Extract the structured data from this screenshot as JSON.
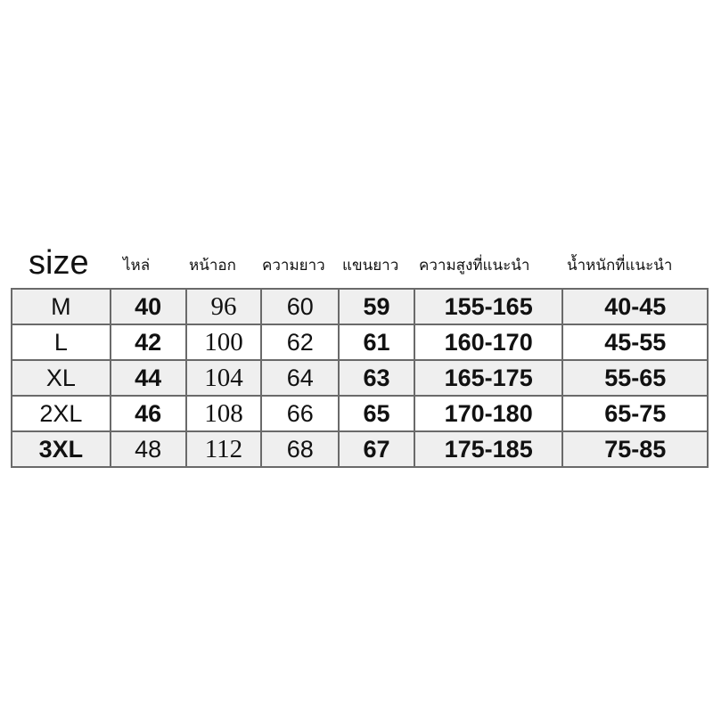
{
  "headers": [
    "size",
    "ไหล่",
    "หน้าอก",
    "ความยาว",
    "แขนยาว",
    "ความสูงที่แนะนำ",
    "น้ำหนักที่แนะนำ"
  ],
  "rows": [
    [
      "M",
      "40",
      "96",
      "60",
      "59",
      "155-165",
      "40-45"
    ],
    [
      "L",
      "42",
      "100",
      "62",
      "61",
      "160-170",
      "45-55"
    ],
    [
      "XL",
      "44",
      "104",
      "64",
      "63",
      "165-175",
      "55-65"
    ],
    [
      "2XL",
      "46",
      "108",
      "66",
      "65",
      "170-180",
      "65-75"
    ],
    [
      "3XL",
      "48",
      "112",
      "68",
      "67",
      "175-185",
      "75-85"
    ]
  ],
  "colors": {
    "row_shade": "#efefef",
    "border": "#6a6a6a",
    "text": "#111111"
  }
}
